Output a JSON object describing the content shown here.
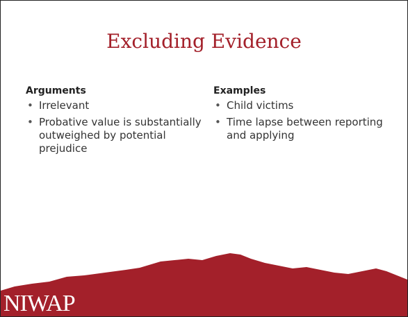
{
  "title": "Excluding Evidence",
  "columns": [
    {
      "heading": "Arguments",
      "items": [
        "Irrelevant",
        "Probative value is substantially outweighed by potential prejudice"
      ]
    },
    {
      "heading": "Examples",
      "items": [
        "Child victims",
        "Time lapse between reporting and applying"
      ]
    }
  ],
  "footer": {
    "logo": "NIWAP"
  }
}
